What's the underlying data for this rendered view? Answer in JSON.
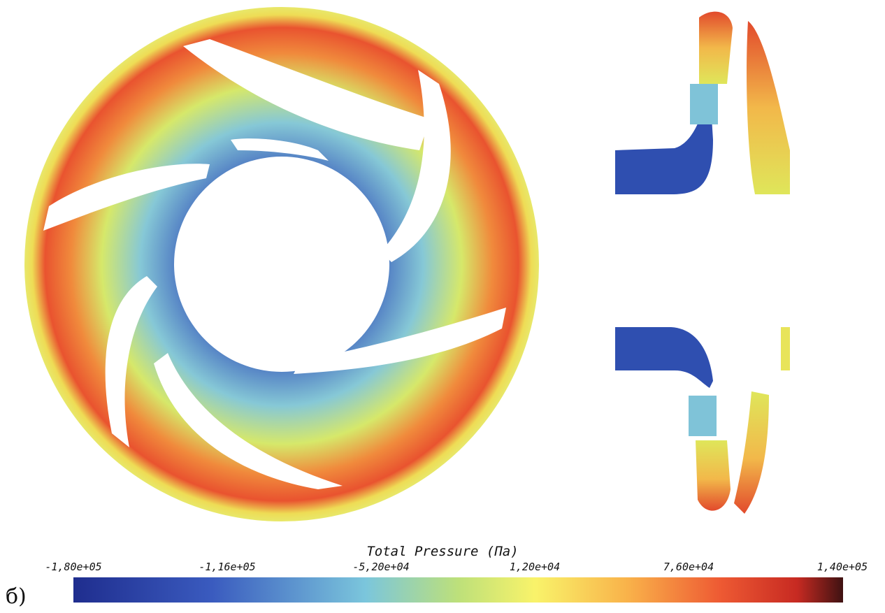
{
  "figure": {
    "panel_label": "б)",
    "colorbar": {
      "title": "Total Pressure (Па)",
      "ticks": [
        "-1,80e+05",
        "-1,16e+05",
        "-5,20e+04",
        "1,20e+04",
        "7,60e+04",
        "1,40e+05"
      ],
      "range": [
        -180000,
        140000
      ],
      "colors": [
        "#1f2d8e",
        "#3a5bbf",
        "#7bc6dc",
        "#bde07a",
        "#f9f36a",
        "#f9b24a",
        "#ee5a33",
        "#c72a22",
        "#3f1212"
      ]
    }
  }
}
